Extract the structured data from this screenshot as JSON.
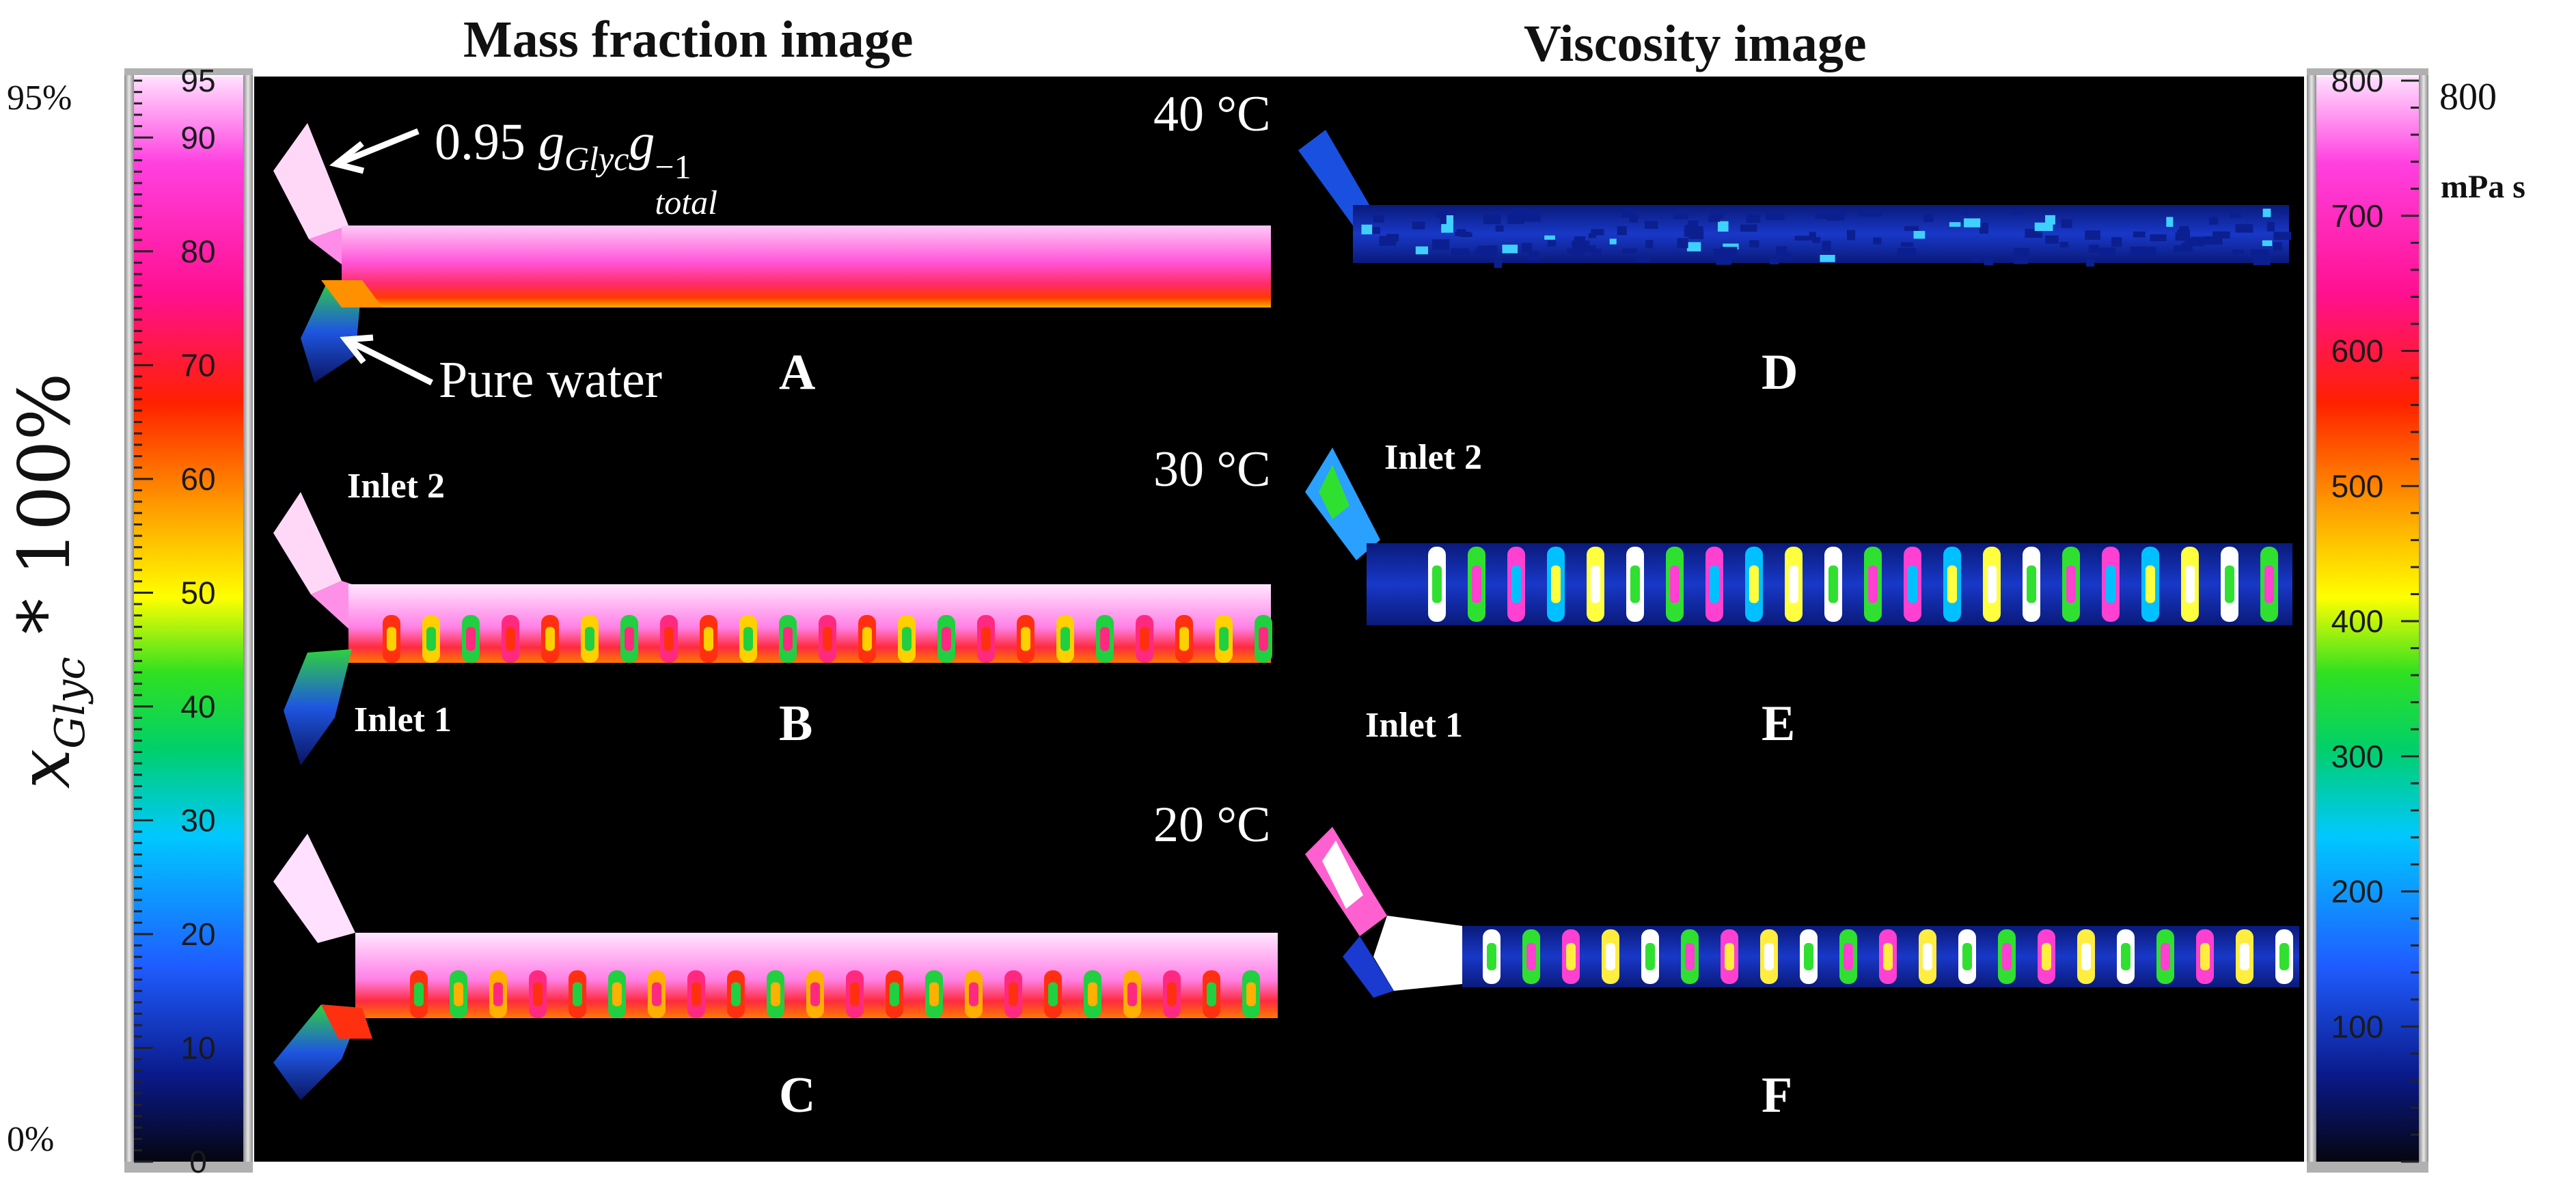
{
  "headers": {
    "left": "Mass fraction image",
    "right": "Viscosity image"
  },
  "left_scale": {
    "top_label": "95%",
    "bottom_label": "0%",
    "ticks": [
      "95",
      "90",
      "80",
      "70",
      "60",
      "50",
      "40",
      "30",
      "20",
      "10",
      "0"
    ],
    "axis_label": "x_Glyc * 100%",
    "axis_var": "x",
    "axis_sub": "Glyc",
    "axis_rest": " * 100%"
  },
  "right_scale": {
    "top_label": "800",
    "unit_label": "mPa s",
    "ticks": [
      "800",
      "700",
      "600",
      "500",
      "400",
      "300",
      "200",
      "100"
    ]
  },
  "temperatures": [
    "40 °C",
    "30 °C",
    "20 °C"
  ],
  "panel_letters": [
    "A",
    "B",
    "C",
    "D",
    "E",
    "F"
  ],
  "annotations": {
    "glycerol_inlet": "0.95 g_Glyc g_total^-1",
    "glycerol_value": "0.95",
    "g1": "g",
    "g1_sub": "Glyc",
    "g2": "g",
    "g2_sub": "total",
    "g2_sup": "−1",
    "water_inlet": "Pure water",
    "inlet_2": "Inlet 2",
    "inlet_1": "Inlet 1"
  },
  "colors": {
    "background": "#000000",
    "colormap": [
      "#050510",
      "#0a1a8a",
      "#1f5cff",
      "#00c8ff",
      "#00d06a",
      "#2fe020",
      "#ffff00",
      "#ffa000",
      "#ff2000",
      "#ff1090",
      "#ff40e0",
      "#ffe0ff"
    ]
  }
}
